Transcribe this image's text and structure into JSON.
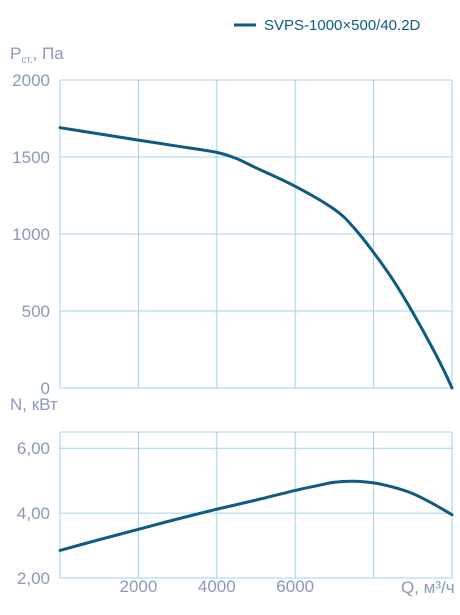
{
  "colors": {
    "curve": "#0f5b82",
    "grid": "#9fd4ea",
    "label": "#8a99b8",
    "legend_text": "#0f5b82"
  },
  "legend": {
    "series_label": "SVPS-1000×500/40.2D",
    "placement": "top-right"
  },
  "chart_data": [
    {
      "type": "line",
      "ylabel": {
        "main": "P",
        "sub": "ст.",
        "unit": ", Па"
      },
      "xlim": [
        0,
        10000
      ],
      "ylim": [
        0,
        2000
      ],
      "y_ticks": [
        {
          "value": 0,
          "label": "0"
        },
        {
          "value": 500,
          "label": "500"
        },
        {
          "value": 1000,
          "label": "1000"
        },
        {
          "value": 1500,
          "label": "1500"
        },
        {
          "value": 2000,
          "label": "2000"
        }
      ],
      "x_gridlines": [
        2000,
        4000,
        6000,
        8000,
        10000
      ],
      "grid": true,
      "series": [
        {
          "name": "SVPS-1000×500/40.2D",
          "x": [
            0,
            1000,
            2000,
            3000,
            4000,
            4500,
            5000,
            6000,
            7000,
            7500,
            8000,
            8500,
            9000,
            9500,
            9800,
            10000
          ],
          "y": [
            1690,
            1650,
            1610,
            1570,
            1530,
            1490,
            1430,
            1310,
            1160,
            1040,
            880,
            700,
            490,
            260,
            110,
            0
          ]
        }
      ]
    },
    {
      "type": "line",
      "ylabel": "N, кВт",
      "xlabel": "Q, м³/ч",
      "xlim": [
        0,
        10000
      ],
      "ylim": [
        2,
        6.5
      ],
      "y_ticks": [
        {
          "value": 2,
          "label": "2,00"
        },
        {
          "value": 4,
          "label": "4,00"
        },
        {
          "value": 6,
          "label": "6,00"
        }
      ],
      "x_ticks": [
        {
          "value": 2000,
          "label": "2000"
        },
        {
          "value": 4000,
          "label": "4000"
        },
        {
          "value": 6000,
          "label": "6000"
        }
      ],
      "x_gridlines": [
        2000,
        4000,
        6000,
        8000,
        10000
      ],
      "grid": true,
      "series": [
        {
          "name": "SVPS-1000×500/40.2D",
          "x": [
            0,
            1000,
            2000,
            3000,
            4000,
            5000,
            6000,
            6500,
            7000,
            7500,
            8000,
            8500,
            9000,
            9500,
            10000
          ],
          "y": [
            2.85,
            3.18,
            3.5,
            3.82,
            4.12,
            4.4,
            4.7,
            4.83,
            4.95,
            4.98,
            4.93,
            4.8,
            4.6,
            4.3,
            3.95
          ]
        }
      ]
    }
  ]
}
